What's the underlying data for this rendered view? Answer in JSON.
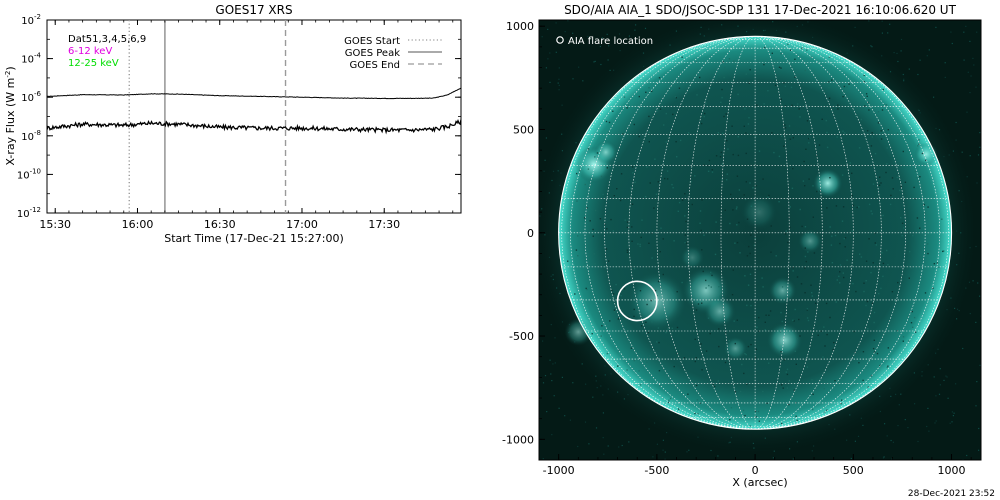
{
  "footer_timestamp": "28-Dec-2021 23:52",
  "chart_data": [
    {
      "type": "line",
      "title": "GOES17 XRS",
      "xlabel": "Start Time (17-Dec-21 15:27:00)",
      "ylabel": "X-ray Flux (W m",
      "ylabel_sup": "-2",
      "ylabel_close": ")",
      "y_scale": "log",
      "ylim": [
        1e-12,
        0.01
      ],
      "xlim": [
        "15:27",
        "17:58"
      ],
      "x_ticks": [
        "15:30",
        "16:00",
        "16:30",
        "17:00",
        "17:30"
      ],
      "y_ticks": [
        {
          "base": "10",
          "exp": "-2"
        },
        {
          "base": "10",
          "exp": "-4"
        },
        {
          "base": "10",
          "exp": "-6"
        },
        {
          "base": "10",
          "exp": "-8"
        },
        {
          "base": "10",
          "exp": "-10"
        },
        {
          "base": "10",
          "exp": "-12"
        }
      ],
      "inset_text": [
        {
          "text": "Dat51,3,4,5,6,9",
          "color": "#000000"
        },
        {
          "text": "6-12 keV",
          "color": "#e000e0"
        },
        {
          "text": "12-25 keV",
          "color": "#00dd00"
        }
      ],
      "legend": [
        {
          "label": "GOES Start",
          "style": "dotted"
        },
        {
          "label": "GOES Peak",
          "style": "solid"
        },
        {
          "label": "GOES End",
          "style": "dashed"
        }
      ],
      "legend_position": "top-right",
      "vertical_markers": [
        {
          "name": "GOES Start",
          "x": "15:57"
        },
        {
          "name": "GOES Peak",
          "x": "16:10"
        },
        {
          "name": "GOES End",
          "x": "16:54"
        }
      ],
      "series": [
        {
          "x": [
            "15:27",
            "15:40",
            "15:55",
            "16:05",
            "16:15",
            "16:30",
            "16:45",
            "17:00",
            "17:15",
            "17:30",
            "17:40",
            "17:48",
            "17:53",
            "17:58"
          ],
          "values": [
            1.1e-06,
            1.35e-06,
            1.3e-06,
            1.5e-06,
            1.45e-06,
            1.2e-06,
            1.1e-06,
            1e-06,
            9e-07,
            8.7e-07,
            8.7e-07,
            9e-07,
            1.3e-06,
            3e-06
          ]
        },
        {
          "x": [
            "15:27",
            "15:40",
            "15:55",
            "16:05",
            "16:15",
            "16:30",
            "16:45",
            "17:00",
            "17:15",
            "17:30",
            "17:40",
            "17:48",
            "17:53",
            "17:58"
          ],
          "values": [
            2.5e-08,
            4e-08,
            3.5e-08,
            4.5e-08,
            4e-08,
            2.8e-08,
            2.5e-08,
            2.5e-08,
            2.2e-08,
            2e-08,
            2e-08,
            2.2e-08,
            3e-08,
            5.5e-08
          ]
        }
      ]
    },
    {
      "type": "image",
      "title": "SDO/AIA AIA_1 SDO/JSOC-SDP 131 17-Dec-2021 16:10:06.620 UT",
      "xlabel": "X (arcsec)",
      "ylabel": "",
      "xlim": [
        -1100,
        1150
      ],
      "ylim": [
        -1100,
        1030
      ],
      "x_ticks": [
        -1000,
        -500,
        0,
        500,
        1000
      ],
      "y_ticks": [
        1000,
        500,
        0,
        -500,
        -1000
      ],
      "legend": [
        {
          "label": "AIA flare location",
          "marker": "open-circle"
        }
      ],
      "legend_position": "top-left",
      "flare_location": {
        "x": -600,
        "y": -330
      },
      "solar_radius_arcsec": 975,
      "image_colors": {
        "background": "#041a16",
        "disk": "#0c4a44",
        "limb": "#2fd0c0",
        "grid": "#ffffff"
      }
    }
  ]
}
